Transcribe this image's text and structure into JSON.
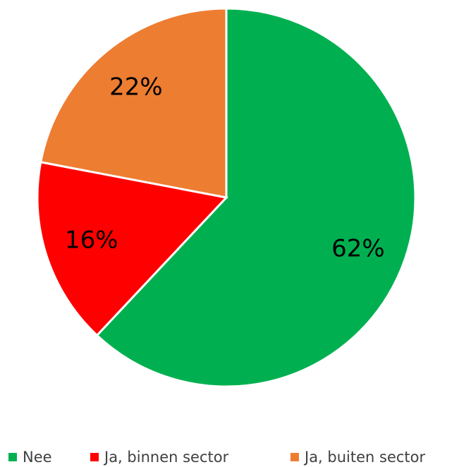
{
  "chart_data": {
    "type": "pie",
    "categories": [
      "Nee",
      "Ja, binnen sector",
      "Ja, buiten sector"
    ],
    "values": [
      62,
      16,
      22
    ],
    "value_labels": [
      "62%",
      "16%",
      "22%"
    ],
    "colors": [
      "#00b050",
      "#ff0000",
      "#ed7d31"
    ],
    "legend": "bottom"
  }
}
